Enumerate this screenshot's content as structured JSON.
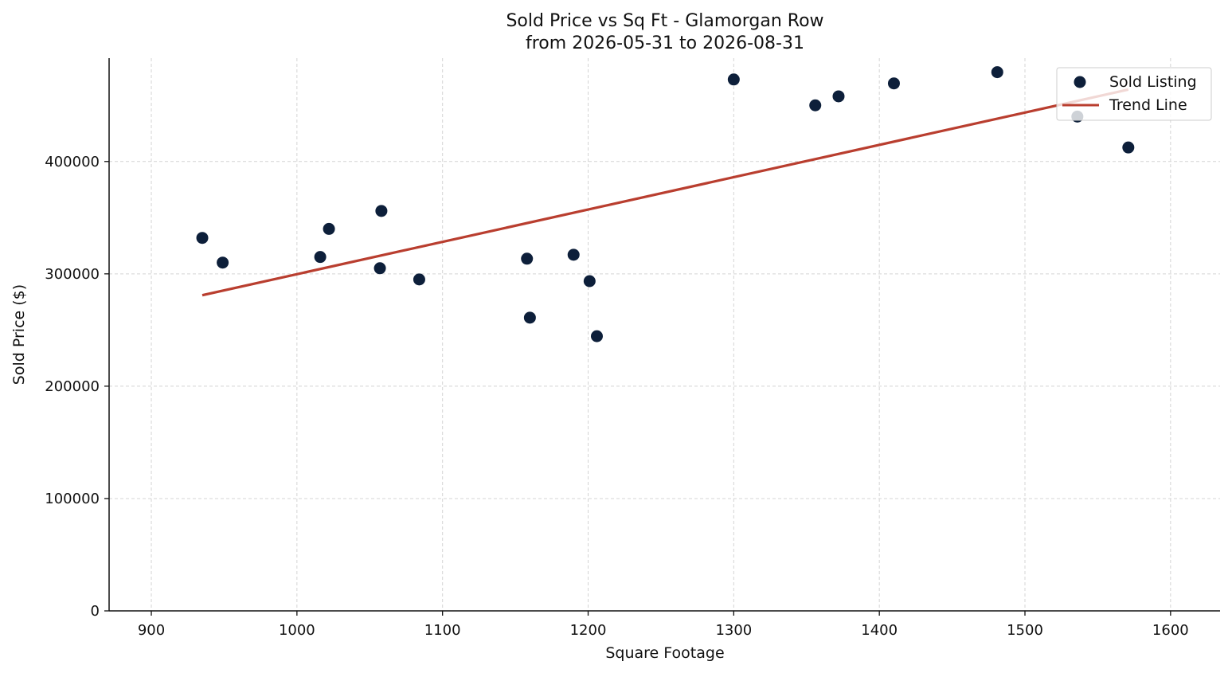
{
  "chart_data": {
    "type": "scatter",
    "title": "Sold Price vs Sq Ft - Glamorgan Row",
    "subtitle": "from 2026-05-31 to 2026-08-31",
    "xlabel": "Square Footage",
    "ylabel": "Sold Price ($)",
    "xlim": [
      871,
      1634
    ],
    "ylim": [
      0,
      492000
    ],
    "xticks": [
      900,
      1000,
      1100,
      1200,
      1300,
      1400,
      1500,
      1600
    ],
    "xtick_labels": [
      "900",
      "1000",
      "1100",
      "1200",
      "1300",
      "1400",
      "1500",
      "1600"
    ],
    "yticks": [
      0,
      100000,
      200000,
      300000,
      400000
    ],
    "ytick_labels": [
      "0",
      "100000",
      "200000",
      "300000",
      "400000"
    ],
    "grid": true,
    "legend_position": "top-right",
    "series": [
      {
        "name": "Sold Listing",
        "type": "scatter",
        "color": "#0d1f3a",
        "points": [
          {
            "x": 935,
            "y": 332000
          },
          {
            "x": 949,
            "y": 310000
          },
          {
            "x": 1016,
            "y": 315000
          },
          {
            "x": 1022,
            "y": 340000
          },
          {
            "x": 1057,
            "y": 305000
          },
          {
            "x": 1058,
            "y": 356000
          },
          {
            "x": 1084,
            "y": 295000
          },
          {
            "x": 1158,
            "y": 313500
          },
          {
            "x": 1160,
            "y": 261000
          },
          {
            "x": 1190,
            "y": 317000
          },
          {
            "x": 1201,
            "y": 293500
          },
          {
            "x": 1206,
            "y": 244500
          },
          {
            "x": 1300,
            "y": 473000
          },
          {
            "x": 1356,
            "y": 450000
          },
          {
            "x": 1372,
            "y": 458000
          },
          {
            "x": 1410,
            "y": 469500
          },
          {
            "x": 1481,
            "y": 479500
          },
          {
            "x": 1536,
            "y": 440000
          },
          {
            "x": 1571,
            "y": 412500
          }
        ]
      },
      {
        "name": "Trend Line",
        "type": "line",
        "color": "#b93e2f",
        "points": [
          {
            "x": 935,
            "y": 281000
          },
          {
            "x": 1571,
            "y": 464000
          }
        ]
      }
    ]
  }
}
